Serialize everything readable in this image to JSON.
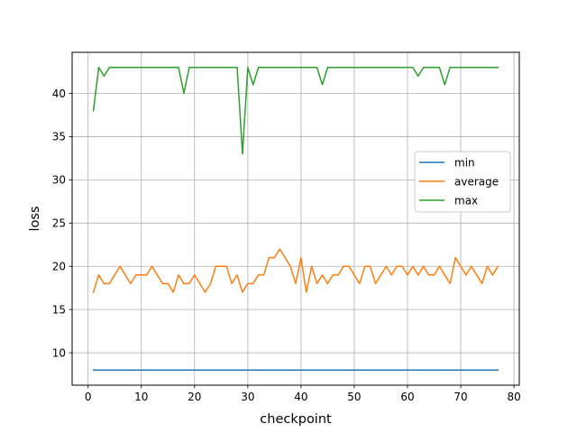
{
  "chart_data": {
    "type": "line",
    "title": "",
    "xlabel": "checkpoint",
    "ylabel": "loss",
    "xlim": [
      -3,
      81
    ],
    "ylim": [
      6.25,
      44.75
    ],
    "xticks": [
      0,
      10,
      20,
      30,
      40,
      50,
      60,
      70,
      80
    ],
    "yticks": [
      10,
      15,
      20,
      25,
      30,
      35,
      40
    ],
    "grid": true,
    "legend_position": "center-right",
    "x": [
      1,
      2,
      3,
      4,
      5,
      6,
      7,
      8,
      9,
      10,
      11,
      12,
      13,
      14,
      15,
      16,
      17,
      18,
      19,
      20,
      21,
      22,
      23,
      24,
      25,
      26,
      27,
      28,
      29,
      30,
      31,
      32,
      33,
      34,
      35,
      36,
      37,
      38,
      39,
      40,
      41,
      42,
      43,
      44,
      45,
      46,
      47,
      48,
      49,
      50,
      51,
      52,
      53,
      54,
      55,
      56,
      57,
      58,
      59,
      60,
      61,
      62,
      63,
      64,
      65,
      66,
      67,
      68,
      69,
      70,
      71,
      72,
      73,
      74,
      75,
      76,
      77
    ],
    "series": [
      {
        "name": "min",
        "color": "#1f77b4",
        "values": [
          8,
          8,
          8,
          8,
          8,
          8,
          8,
          8,
          8,
          8,
          8,
          8,
          8,
          8,
          8,
          8,
          8,
          8,
          8,
          8,
          8,
          8,
          8,
          8,
          8,
          8,
          8,
          8,
          8,
          8,
          8,
          8,
          8,
          8,
          8,
          8,
          8,
          8,
          8,
          8,
          8,
          8,
          8,
          8,
          8,
          8,
          8,
          8,
          8,
          8,
          8,
          8,
          8,
          8,
          8,
          8,
          8,
          8,
          8,
          8,
          8,
          8,
          8,
          8,
          8,
          8,
          8,
          8,
          8,
          8,
          8,
          8,
          8,
          8,
          8,
          8,
          8
        ]
      },
      {
        "name": "average",
        "color": "#ff7f0e",
        "values": [
          17,
          19,
          18,
          18,
          19,
          20,
          19,
          18,
          19,
          19,
          19,
          20,
          19,
          18,
          18,
          17,
          19,
          18,
          18,
          19,
          18,
          17,
          18,
          20,
          20,
          20,
          18,
          19,
          17,
          18,
          18,
          19,
          19,
          21,
          21,
          22,
          21,
          20,
          18,
          21,
          17,
          20,
          18,
          19,
          18,
          19,
          19,
          20,
          20,
          19,
          18,
          20,
          20,
          18,
          19,
          20,
          19,
          20,
          20,
          19,
          20,
          19,
          20,
          19,
          19,
          20,
          19,
          18,
          21,
          20,
          19,
          20,
          19,
          18,
          20,
          19,
          20
        ]
      },
      {
        "name": "max",
        "color": "#2ca02c",
        "values": [
          38,
          43,
          42,
          43,
          43,
          43,
          43,
          43,
          43,
          43,
          43,
          43,
          43,
          43,
          43,
          43,
          43,
          40,
          43,
          43,
          43,
          43,
          43,
          43,
          43,
          43,
          43,
          43,
          33,
          43,
          41,
          43,
          43,
          43,
          43,
          43,
          43,
          43,
          43,
          43,
          43,
          43,
          43,
          41,
          43,
          43,
          43,
          43,
          43,
          43,
          43,
          43,
          43,
          43,
          43,
          43,
          43,
          43,
          43,
          43,
          43,
          42,
          43,
          43,
          43,
          43,
          41,
          43,
          43,
          43,
          43,
          43,
          43,
          43,
          43,
          43,
          43
        ]
      }
    ]
  }
}
